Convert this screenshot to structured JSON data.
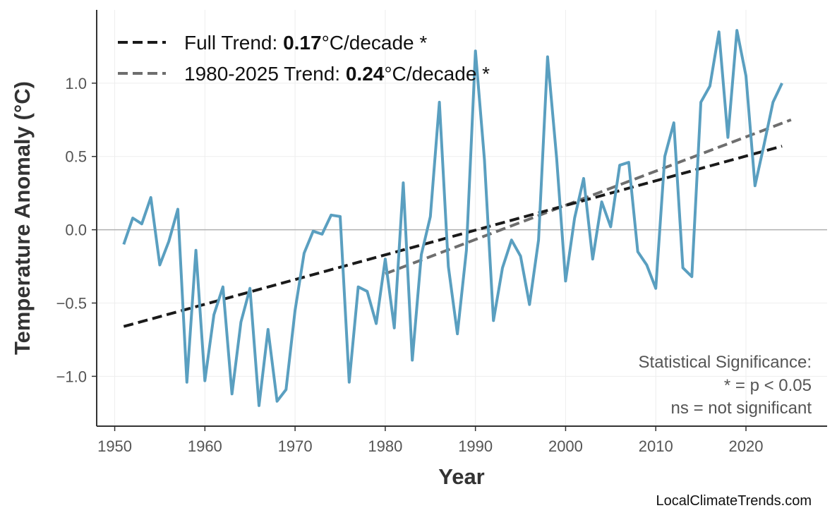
{
  "chart_data": {
    "type": "line",
    "title": "",
    "xlabel": "Year",
    "ylabel": "Temperature Anomaly (°C)",
    "xlim": [
      1948,
      2029
    ],
    "ylim": [
      -1.34,
      1.5
    ],
    "grid": true,
    "x_ticks": [
      "1950",
      "1960",
      "1970",
      "1980",
      "1990",
      "2000",
      "2010",
      "2020"
    ],
    "y_ticks": [
      "−1.0",
      "−0.5",
      "0.0",
      "0.5",
      "1.0"
    ],
    "y_tick_values": [
      -1.0,
      -0.5,
      0.0,
      0.5,
      1.0
    ],
    "x_tick_values": [
      1950,
      1960,
      1970,
      1980,
      1990,
      2000,
      2010,
      2020
    ],
    "colors": {
      "series": "#5a9fc0",
      "full_trend": "#1a1a1a",
      "recent_trend": "#6e6e6e",
      "zero_line": "#b0b0b0"
    },
    "series": [
      {
        "x": [
          1951,
          1952,
          1953,
          1954,
          1955,
          1956,
          1957,
          1958,
          1959,
          1960,
          1961,
          1962,
          1963,
          1964,
          1965,
          1966,
          1967,
          1968,
          1969,
          1970,
          1971,
          1972,
          1973,
          1974,
          1975,
          1976,
          1977,
          1978,
          1979,
          1980,
          1981,
          1982,
          1983,
          1984,
          1985,
          1986,
          1987,
          1988,
          1989,
          1990,
          1991,
          1992,
          1993,
          1994,
          1995,
          1996,
          1997,
          1998,
          1999,
          2000,
          2001,
          2002,
          2003,
          2004,
          2005,
          2006,
          2007,
          2008,
          2009,
          2010,
          2011,
          2012,
          2013,
          2014,
          2015,
          2016,
          2017,
          2018,
          2019,
          2020,
          2021,
          2022,
          2023,
          2024
        ],
        "values": [
          -0.1,
          0.08,
          0.04,
          0.22,
          -0.24,
          -0.08,
          0.14,
          -1.04,
          -0.14,
          -1.03,
          -0.58,
          -0.39,
          -1.12,
          -0.63,
          -0.4,
          -1.2,
          -0.68,
          -1.17,
          -1.09,
          -0.55,
          -0.16,
          -0.01,
          -0.03,
          0.1,
          0.09,
          -1.04,
          -0.39,
          -0.42,
          -0.64,
          -0.2,
          -0.67,
          0.32,
          -0.89,
          -0.17,
          0.09,
          0.87,
          -0.25,
          -0.71,
          -0.14,
          1.22,
          0.48,
          -0.62,
          -0.26,
          -0.07,
          -0.18,
          -0.51,
          -0.07,
          1.18,
          0.49,
          -0.35,
          0.08,
          0.35,
          -0.2,
          0.19,
          0.02,
          0.44,
          0.46,
          -0.15,
          -0.24,
          -0.4,
          0.5,
          0.73,
          -0.26,
          -0.32,
          0.87,
          0.98,
          1.35,
          0.63,
          1.36,
          1.05,
          0.3,
          0.58,
          0.87,
          1.0
        ]
      }
    ],
    "trends": [
      {
        "label_prefix": "Full Trend: ",
        "value": "0.17",
        "label_suffix": "°C/decade *",
        "x": [
          1951,
          2024
        ],
        "y": [
          -0.66,
          0.57
        ]
      },
      {
        "label_prefix": "1980-2025 Trend: ",
        "value": "0.24",
        "label_suffix": "°C/decade *",
        "x": [
          1980,
          2025
        ],
        "y": [
          -0.3,
          0.75
        ]
      }
    ],
    "legend_position": "top-left",
    "annotation": [
      "Statistical Significance:",
      "* = p < 0.05",
      "ns = not significant"
    ],
    "credit": "LocalClimateTrends.com"
  }
}
